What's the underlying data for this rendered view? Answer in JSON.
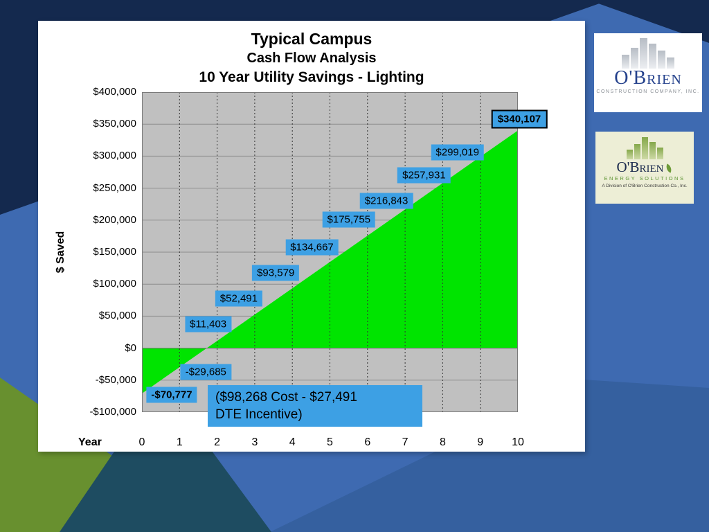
{
  "chart_data": {
    "type": "area",
    "title": "Typical Campus",
    "subtitle1": "Cash Flow Analysis",
    "subtitle2": "10 Year Utility Savings - Lighting",
    "xlabel": "Year",
    "ylabel": "$ Saved",
    "x": [
      0,
      1,
      2,
      3,
      4,
      5,
      6,
      7,
      8,
      9,
      10
    ],
    "values": [
      -70777,
      -29685,
      11403,
      52491,
      93579,
      134667,
      175755,
      216843,
      257931,
      299019,
      340107
    ],
    "point_labels": [
      "-$70,777",
      "-$29,685",
      "$11,403",
      "$52,491",
      "$93,579",
      "$134,667",
      "$175,755",
      "$216,843",
      "$257,931",
      "$299,019",
      "$340,107"
    ],
    "ylim": [
      -100000,
      400000
    ],
    "ytick_step": 50000,
    "ytick_labels": [
      "$400,000",
      "$350,000",
      "$300,000",
      "$250,000",
      "$200,000",
      "$150,000",
      "$100,000",
      "$50,000",
      "$0",
      "-$50,000",
      "-$100,000"
    ],
    "grid": true,
    "legend": false
  },
  "callout": {
    "line1": "($98,268 Cost - $27,491",
    "line2": "DTE Incentive)"
  },
  "logos": {
    "construction": {
      "name": "O'Brien",
      "subtitle": "Construction Company, Inc."
    },
    "energy": {
      "name": "O'Brien",
      "subtitle": "Energy Solutions",
      "division": "A Division of O'Brien Construction Co., Inc."
    }
  },
  "colors": {
    "slide_blue": "#3e6ab1",
    "slide_blue_dark": "#35609f",
    "navy": "#14294e",
    "olive": "#68902f",
    "teal": "#1e4c61",
    "panel_white": "#ffffff",
    "plot_bg": "#c0c0c0",
    "area_green": "#00e400",
    "label_blue": "#3da0e4",
    "grid_line": "#8c8c8c"
  }
}
